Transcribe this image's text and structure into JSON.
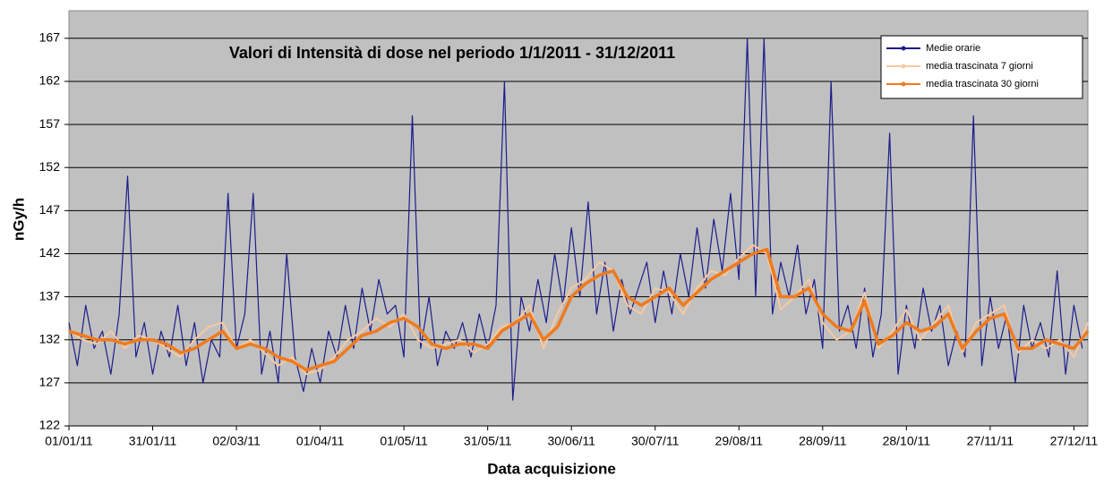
{
  "chart_data": {
    "type": "line",
    "title": "Valori di Intensità di dose nel periodo 1/1/2011 - 31/12/2011",
    "x_label": "Data acquisizione",
    "y_label": "nGy/h",
    "xlim": [
      0,
      365
    ],
    "xticks": [
      {
        "value": 0,
        "label": "01/01/11"
      },
      {
        "value": 30,
        "label": "31/01/11"
      },
      {
        "value": 60,
        "label": "02/03/11"
      },
      {
        "value": 90,
        "label": "01/04/11"
      },
      {
        "value": 120,
        "label": "01/05/11"
      },
      {
        "value": 150,
        "label": "31/05/11"
      },
      {
        "value": 180,
        "label": "30/06/11"
      },
      {
        "value": 210,
        "label": "30/07/11"
      },
      {
        "value": 240,
        "label": "29/08/11"
      },
      {
        "value": 270,
        "label": "28/09/11"
      },
      {
        "value": 300,
        "label": "28/10/11"
      },
      {
        "value": 330,
        "label": "27/11/11"
      },
      {
        "value": 360,
        "label": "27/12/11"
      }
    ],
    "ylim": [
      122,
      170.2
    ],
    "yticks": [
      122,
      127,
      132,
      137,
      142,
      147,
      152,
      157,
      162,
      167
    ],
    "grid": true,
    "legend": "upper right",
    "series": [
      {
        "name": "Medie orarie",
        "color": "#1c1c8c",
        "x": [
          0,
          3,
          6,
          9,
          12,
          15,
          18,
          21,
          24,
          27,
          30,
          33,
          36,
          39,
          42,
          45,
          48,
          51,
          54,
          57,
          60,
          63,
          66,
          69,
          72,
          75,
          78,
          81,
          84,
          87,
          90,
          93,
          96,
          99,
          102,
          105,
          108,
          111,
          114,
          117,
          120,
          123,
          126,
          129,
          132,
          135,
          138,
          141,
          144,
          147,
          150,
          153,
          156,
          159,
          162,
          165,
          168,
          171,
          174,
          177,
          180,
          183,
          186,
          189,
          192,
          195,
          198,
          201,
          204,
          207,
          210,
          213,
          216,
          219,
          222,
          225,
          228,
          231,
          234,
          237,
          240,
          243,
          246,
          249,
          252,
          255,
          258,
          261,
          264,
          267,
          270,
          273,
          276,
          279,
          282,
          285,
          288,
          291,
          294,
          297,
          300,
          303,
          306,
          309,
          312,
          315,
          318,
          321,
          324,
          327,
          330,
          333,
          336,
          339,
          342,
          345,
          348,
          351,
          354,
          357,
          360,
          363
        ],
        "values": [
          134,
          129,
          136,
          131,
          133,
          128,
          135,
          151,
          130,
          134,
          128,
          133,
          130,
          136,
          129,
          134,
          127,
          132,
          130,
          149,
          131,
          135,
          149,
          128,
          133,
          127,
          142,
          130,
          126,
          131,
          127,
          133,
          130,
          136,
          131,
          138,
          133,
          139,
          135,
          136,
          130,
          158,
          131,
          137,
          129,
          133,
          131,
          134,
          130,
          135,
          131,
          136,
          162,
          125,
          137,
          133,
          139,
          134,
          142,
          136,
          145,
          137,
          148,
          135,
          141,
          133,
          139,
          135,
          138,
          141,
          134,
          140,
          135,
          142,
          137,
          145,
          138,
          146,
          140,
          149,
          139,
          167,
          137,
          167,
          135,
          141,
          137,
          143,
          135,
          139,
          131,
          162,
          133,
          136,
          131,
          138,
          130,
          135,
          156,
          128,
          136,
          131,
          138,
          133,
          136,
          129,
          133,
          130,
          158,
          129,
          137,
          131,
          135,
          127,
          136,
          131,
          134,
          130,
          140,
          128,
          136,
          131
        ]
      },
      {
        "name": "media trascinata 7  giorni",
        "color": "#f7c9a0",
        "x": [
          0,
          5,
          10,
          15,
          20,
          25,
          30,
          35,
          40,
          45,
          50,
          55,
          60,
          65,
          70,
          75,
          80,
          85,
          90,
          95,
          100,
          105,
          110,
          115,
          120,
          125,
          130,
          135,
          140,
          145,
          150,
          155,
          160,
          165,
          170,
          175,
          180,
          185,
          190,
          195,
          200,
          205,
          210,
          215,
          220,
          225,
          230,
          235,
          240,
          245,
          250,
          255,
          260,
          265,
          270,
          275,
          280,
          285,
          290,
          295,
          300,
          305,
          310,
          315,
          320,
          325,
          330,
          335,
          340,
          345,
          350,
          355,
          360,
          365
        ],
        "values": [
          133,
          132,
          131.5,
          133,
          131,
          132.5,
          132,
          131,
          130,
          132,
          133.5,
          134,
          131,
          132,
          130.5,
          129,
          130,
          128,
          128.5,
          130,
          132,
          133,
          134.5,
          133.5,
          135,
          132,
          131,
          131.5,
          132,
          130.5,
          131.5,
          133.5,
          134,
          136,
          131,
          135,
          138,
          139,
          141,
          140,
          136,
          135,
          138,
          137.5,
          135,
          138,
          140,
          139.5,
          141.5,
          143,
          142,
          135.5,
          137,
          139,
          134,
          132,
          133,
          137.5,
          131,
          133,
          135.5,
          132,
          134,
          136,
          130.5,
          134,
          135,
          136,
          130.5,
          132,
          131,
          132,
          130,
          134
        ]
      },
      {
        "name": "media trascinata 30 giorni",
        "color": "#f07a1c",
        "x": [
          0,
          5,
          10,
          15,
          20,
          25,
          30,
          35,
          40,
          45,
          50,
          55,
          60,
          65,
          70,
          75,
          80,
          85,
          90,
          95,
          100,
          105,
          110,
          115,
          120,
          125,
          130,
          135,
          140,
          145,
          150,
          155,
          160,
          165,
          170,
          175,
          180,
          185,
          190,
          195,
          200,
          205,
          210,
          215,
          220,
          225,
          230,
          235,
          240,
          245,
          250,
          255,
          260,
          265,
          270,
          275,
          280,
          285,
          290,
          295,
          300,
          305,
          310,
          315,
          320,
          325,
          330,
          335,
          340,
          345,
          350,
          355,
          360,
          365
        ],
        "values": [
          133,
          132.5,
          132,
          132,
          131.5,
          132,
          132,
          131.5,
          130.5,
          131,
          132,
          133,
          131,
          131.5,
          131,
          130,
          129.5,
          128.5,
          129,
          129.5,
          131,
          132.5,
          133,
          134,
          134.5,
          133.5,
          131.5,
          131,
          131.5,
          131.5,
          131,
          133,
          134,
          135,
          132,
          133.5,
          137,
          138.5,
          139.5,
          140,
          137,
          136,
          137,
          138,
          136,
          137.5,
          139,
          140,
          141,
          142,
          142.5,
          137,
          137,
          138,
          135,
          133.5,
          133,
          136.5,
          131.5,
          132.5,
          134,
          133,
          133.5,
          135,
          131,
          133,
          134.5,
          135,
          131,
          131,
          132,
          131.5,
          131,
          133
        ]
      }
    ]
  }
}
